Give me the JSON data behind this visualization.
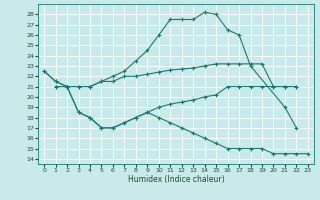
{
  "xlabel": "Humidex (Indice chaleur)",
  "bg_color": "#c8eaea",
  "grid_color": "#ffffff",
  "line_color": "#1a7a6e",
  "xlim": [
    -0.5,
    23.5
  ],
  "ylim": [
    13.5,
    29
  ],
  "yticks": [
    14,
    15,
    16,
    17,
    18,
    19,
    20,
    21,
    22,
    23,
    24,
    25,
    26,
    27,
    28
  ],
  "xticks": [
    0,
    1,
    2,
    3,
    4,
    5,
    6,
    7,
    8,
    9,
    10,
    11,
    12,
    13,
    14,
    15,
    16,
    17,
    18,
    19,
    20,
    21,
    22,
    23
  ],
  "line1_y": [
    22.5,
    21.5,
    21.0,
    21.0,
    21.0,
    21.5,
    21.5,
    22.0,
    22.0,
    22.2,
    22.4,
    22.6,
    22.7,
    22.8,
    23.0,
    23.2,
    23.2,
    null,
    null,
    null,
    null,
    null,
    null,
    null
  ],
  "line2_y": [
    22.5,
    21.5,
    21.0,
    21.0,
    21.0,
    21.5,
    21.5,
    22.0,
    23.0,
    24.0,
    25.5,
    27.0,
    27.5,
    27.5,
    28.0,
    28.0,
    26.5,
    26.0,
    23.0,
    null,
    null,
    null,
    null,
    null
  ],
  "line3_y": [
    null,
    null,
    null,
    null,
    null,
    null,
    null,
    null,
    null,
    null,
    null,
    null,
    null,
    null,
    null,
    null,
    null,
    null,
    null,
    null,
    null,
    null,
    null,
    null
  ],
  "line_upper_x": [
    0,
    1,
    2,
    3,
    4,
    5,
    6,
    7,
    8,
    9,
    10,
    11,
    12,
    13,
    14,
    15,
    16,
    17,
    18,
    19,
    20,
    21,
    22
  ],
  "line_upper_y": [
    22.5,
    21.5,
    21.0,
    21.0,
    21.0,
    21.5,
    21.5,
    22.0,
    22.0,
    22.2,
    22.4,
    22.6,
    22.7,
    22.8,
    23.0,
    23.2,
    23.2,
    23.2,
    23.2,
    23.2,
    21.0,
    21.0,
    21.0
  ],
  "line_peak_x": [
    0,
    1,
    2,
    3,
    4,
    5,
    6,
    7,
    8,
    9,
    10,
    11,
    12,
    13,
    14,
    15,
    16,
    17,
    18,
    21,
    22
  ],
  "line_peak_y": [
    22.5,
    21.5,
    21.0,
    21.0,
    21.0,
    21.5,
    22.0,
    22.5,
    23.5,
    24.5,
    26.0,
    27.5,
    27.5,
    27.5,
    28.2,
    28.0,
    26.5,
    26.0,
    23.0,
    19.0,
    17.0
  ],
  "line_mid_x": [
    1,
    2,
    3,
    4,
    5,
    6,
    7,
    8,
    9,
    10,
    11,
    12,
    13,
    14,
    15,
    16,
    17,
    18,
    19,
    20,
    21,
    22
  ],
  "line_mid_y": [
    21.0,
    21.0,
    18.5,
    18.0,
    17.0,
    17.0,
    17.5,
    18.0,
    18.5,
    19.0,
    19.3,
    19.5,
    19.7,
    20.0,
    20.2,
    21.0,
    21.0,
    21.0,
    21.0,
    21.0,
    21.0,
    21.0
  ],
  "line_low_x": [
    1,
    2,
    3,
    4,
    5,
    6,
    7,
    8,
    9,
    10,
    11,
    12,
    13,
    14,
    15,
    16,
    17,
    18,
    19,
    20,
    21,
    22,
    23
  ],
  "line_low_y": [
    21.0,
    21.0,
    18.5,
    18.0,
    17.0,
    17.0,
    17.5,
    18.0,
    18.5,
    18.0,
    17.5,
    17.0,
    16.5,
    16.0,
    15.5,
    15.0,
    15.0,
    15.0,
    15.0,
    14.5,
    14.5,
    14.5,
    14.5
  ]
}
